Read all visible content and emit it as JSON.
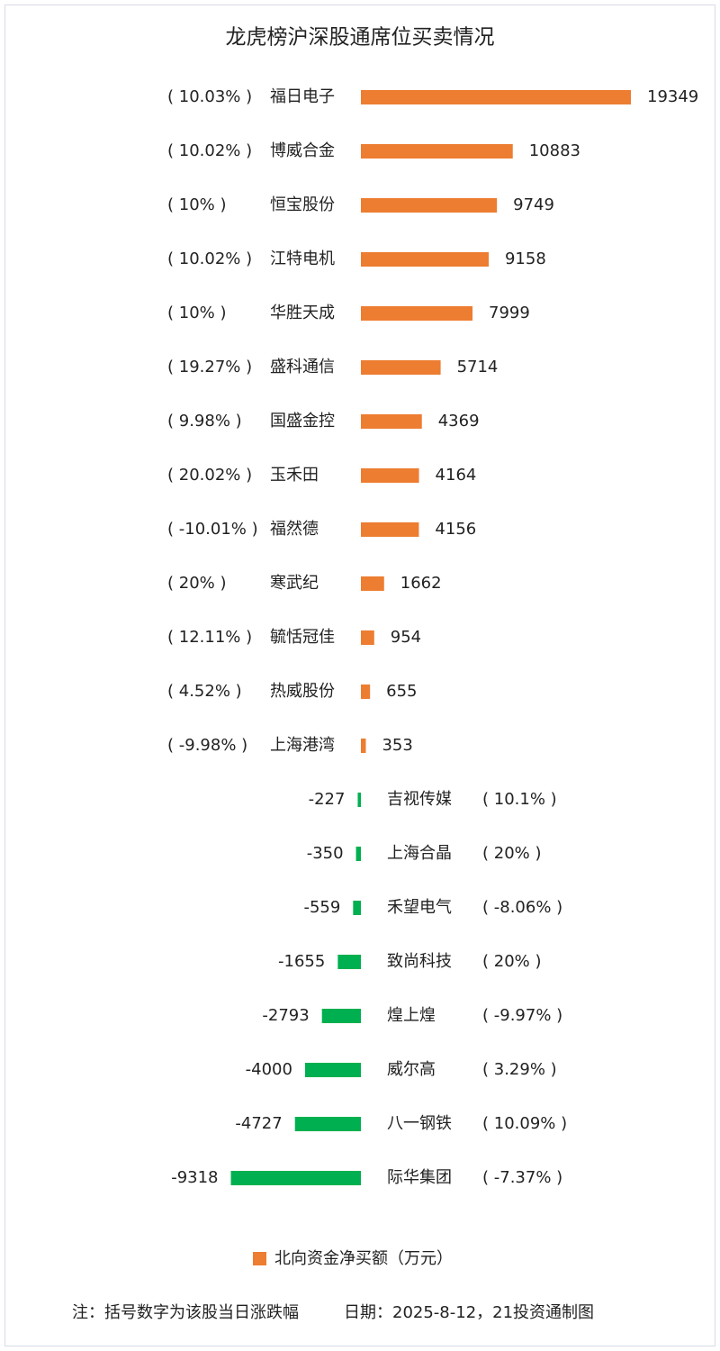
{
  "chart_data": {
    "type": "bar",
    "orientation": "horizontal",
    "title": "龙虎榜沪深股通席位买卖情况",
    "categories": [
      "福日电子",
      "博威合金",
      "恒宝股份",
      "江特电机",
      "华胜天成",
      "盛科通信",
      "国盛金控",
      "玉禾田",
      "福然德",
      "寒武纪",
      "毓恬冠佳",
      "热威股份",
      "上海港湾",
      "吉视传媒",
      "上海合晶",
      "禾望电气",
      "致尚科技",
      "煌上煌",
      "威尔高",
      "八一钢铁",
      "际华集团"
    ],
    "change_labels": [
      "( 10.03% )",
      "( 10.02% )",
      "( 10% )",
      "( 10.02% )",
      "( 10% )",
      "( 19.27% )",
      "( 9.98% )",
      "( 20.02% )",
      "( -10.01% )",
      "( 20% )",
      "( 12.11% )",
      "( 4.52% )",
      "( -9.98% )",
      "( 10.1% )",
      "( 20% )",
      "( -8.06% )",
      "( 20% )",
      "( -9.97% )",
      "( 3.29% )",
      "( 10.09% )",
      "( -7.37% )"
    ],
    "series": [
      {
        "name": "北向资金净买额（万元）",
        "color": "#ED7D31",
        "negative_color": "#00B050",
        "values": [
          19349,
          10883,
          9749,
          9158,
          7999,
          5714,
          4369,
          4164,
          4156,
          1662,
          954,
          655,
          353,
          -227,
          -350,
          -559,
          -1655,
          -2793,
          -4000,
          -4727,
          -9318
        ]
      }
    ],
    "note": "注：括号数字为该股当日涨跌幅",
    "source": "日期：2025-8-12，21投资通制图"
  }
}
